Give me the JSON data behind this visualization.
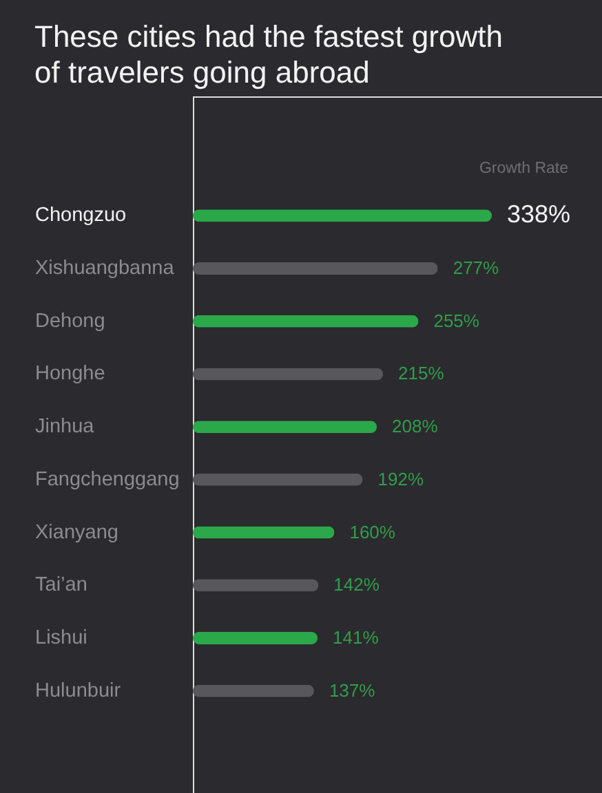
{
  "chart_data": {
    "type": "bar",
    "orientation": "horizontal",
    "title": "These cities had the fastest growth of travelers going abroad",
    "xlabel": "Growth Rate",
    "categories": [
      "Chongzuo",
      "Xishuangbanna",
      "Dehong",
      "Honghe",
      "Jinhua",
      "Fangchenggang",
      "Xianyang",
      "Tai’an",
      "Lishui",
      "Hulunbuir"
    ],
    "values": [
      338,
      277,
      255,
      215,
      208,
      192,
      160,
      142,
      141,
      137
    ],
    "value_labels": [
      "338%",
      "277%",
      "255%",
      "215%",
      "208%",
      "192%",
      "160%",
      "142%",
      "141%",
      "137%"
    ],
    "colors": [
      "#2ba84a",
      "#58575c",
      "#2ba84a",
      "#58575c",
      "#2ba84a",
      "#58575c",
      "#2ba84a",
      "#58575c",
      "#2ba84a",
      "#58575c"
    ],
    "tick_labels": "y"
  }
}
